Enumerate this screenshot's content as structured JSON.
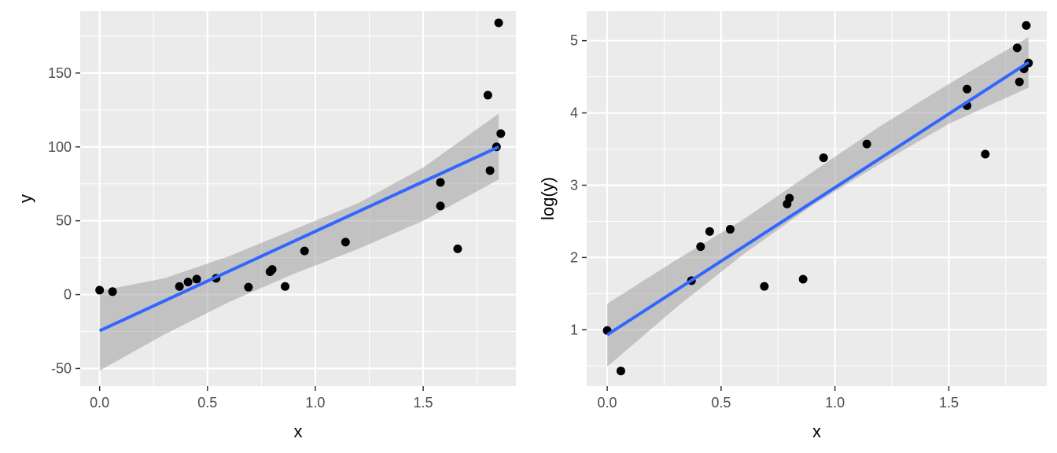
{
  "chart_data": [
    {
      "type": "scatter",
      "xlabel": "x",
      "ylabel": "y",
      "xlim": [
        -0.09,
        1.93
      ],
      "ylim": [
        -62,
        192
      ],
      "x_ticks": [
        0,
        0.5,
        1,
        1.5
      ],
      "x_tick_labels": [
        "0.0",
        "0.5",
        "1.0",
        "1.5"
      ],
      "y_ticks": [
        -50,
        0,
        50,
        100,
        150
      ],
      "y_tick_labels": [
        "-50",
        "0",
        "50",
        "100",
        "150"
      ],
      "grid": true,
      "points": {
        "x": [
          0.0,
          0.06,
          0.37,
          0.41,
          0.45,
          0.54,
          0.69,
          0.79,
          0.8,
          0.86,
          0.95,
          1.14,
          1.58,
          1.58,
          1.66,
          1.8,
          1.81,
          1.84,
          1.85,
          1.86
        ],
        "y": [
          3,
          2,
          5.5,
          8.5,
          10.5,
          11,
          5,
          15.5,
          17,
          5.5,
          29.5,
          35.5,
          76,
          60,
          31,
          135,
          84,
          100,
          184,
          109
        ]
      },
      "fit": {
        "x": [
          0.0,
          1.85
        ],
        "y": [
          -24.5,
          100
        ]
      },
      "ci_band": {
        "x": [
          0.0,
          0.3,
          0.6,
          0.9,
          1.2,
          1.5,
          1.85
        ],
        "lower": [
          -51.5,
          -27,
          -5,
          14,
          31,
          50,
          78
        ],
        "upper": [
          2.5,
          11,
          26,
          44,
          62,
          86,
          122.5
        ]
      },
      "colors": {
        "points": "#000000",
        "fit": "#3366ff",
        "band": "#999999",
        "panel": "#ebebeb",
        "grid": "#ffffff"
      }
    },
    {
      "type": "scatter",
      "xlabel": "x",
      "ylabel": "log(y)",
      "xlim": [
        -0.09,
        1.93
      ],
      "ylim": [
        0.22,
        5.41
      ],
      "x_ticks": [
        0,
        0.5,
        1,
        1.5
      ],
      "x_tick_labels": [
        "0.0",
        "0.5",
        "1.0",
        "1.5"
      ],
      "y_ticks": [
        1,
        2,
        3,
        4,
        5
      ],
      "y_tick_labels": [
        "1",
        "2",
        "3",
        "4",
        "5"
      ],
      "grid": true,
      "points": {
        "x": [
          0.0,
          0.06,
          0.37,
          0.41,
          0.45,
          0.54,
          0.69,
          0.79,
          0.8,
          0.86,
          0.95,
          1.14,
          1.58,
          1.58,
          1.66,
          1.8,
          1.81,
          1.83,
          1.84,
          1.85
        ],
        "y": [
          0.99,
          0.43,
          1.68,
          2.15,
          2.36,
          2.39,
          1.6,
          2.74,
          2.82,
          1.7,
          3.38,
          3.57,
          4.33,
          4.1,
          3.43,
          4.9,
          4.43,
          4.61,
          5.21,
          4.69
        ]
      },
      "fit": {
        "x": [
          0.0,
          1.85
        ],
        "y": [
          0.93,
          4.7
        ]
      },
      "ci_band": {
        "x": [
          0.0,
          0.3,
          0.6,
          0.9,
          1.2,
          1.5,
          1.85
        ],
        "lower": [
          0.49,
          1.3,
          2.05,
          2.72,
          3.3,
          3.85,
          4.35
        ],
        "upper": [
          1.36,
          1.96,
          2.53,
          3.18,
          3.82,
          4.4,
          5.05
        ]
      },
      "colors": {
        "points": "#000000",
        "fit": "#3366ff",
        "band": "#999999",
        "panel": "#ebebeb",
        "grid": "#ffffff"
      }
    }
  ]
}
